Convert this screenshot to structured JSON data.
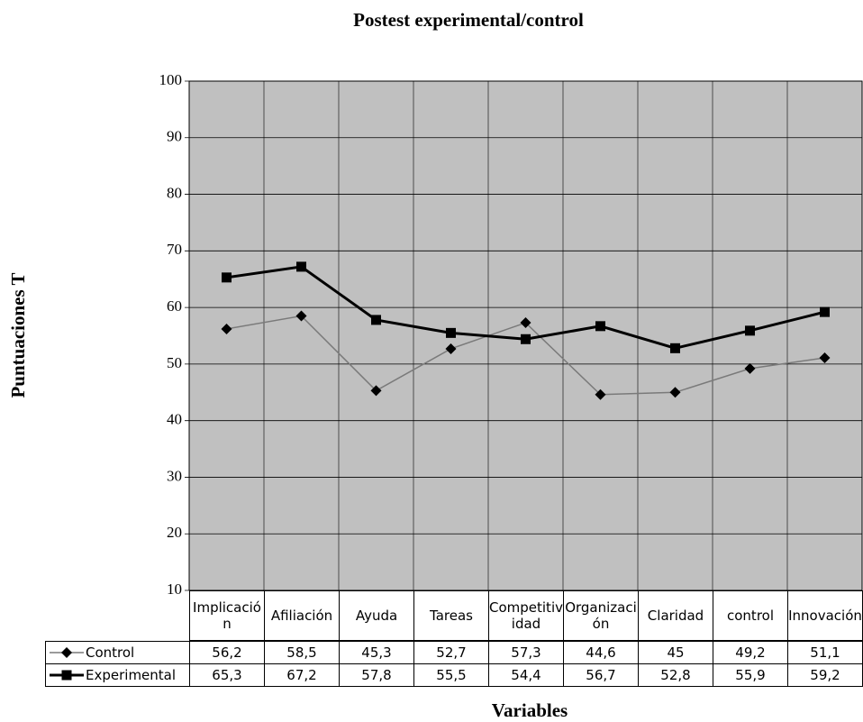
{
  "chart_data": {
    "type": "line",
    "title": "Postest experimental/control",
    "x_label": "Variables",
    "y_label": "Puntuaciones T",
    "categories": [
      "Implicación",
      "Afiliación",
      "Ayuda",
      "Tareas",
      "Competitividad",
      "Organización",
      "Claridad",
      "control",
      "Innovación"
    ],
    "series": [
      {
        "name": "Control",
        "color": "#7a7a7a",
        "marker": "diamond",
        "values": [
          56.2,
          58.5,
          45.3,
          52.7,
          57.3,
          44.6,
          45,
          49.2,
          51.1
        ],
        "value_labels": [
          "56,2",
          "58,5",
          "45,3",
          "52,7",
          "57,3",
          "44,6",
          "45",
          "49,2",
          "51,1"
        ]
      },
      {
        "name": "Experimental",
        "color": "#000000",
        "marker": "square",
        "values": [
          65.3,
          67.2,
          57.8,
          55.5,
          54.4,
          56.7,
          52.8,
          55.9,
          59.2
        ],
        "value_labels": [
          "65,3",
          "67,2",
          "57,8",
          "55,5",
          "54,4",
          "56,7",
          "52,8",
          "55,9",
          "59,2"
        ]
      }
    ],
    "ylim": [
      10,
      100
    ],
    "yticks": [
      10,
      20,
      30,
      40,
      50,
      60,
      70,
      80,
      90,
      100
    ],
    "grid": true,
    "plot_background": "#c0c0c0"
  }
}
